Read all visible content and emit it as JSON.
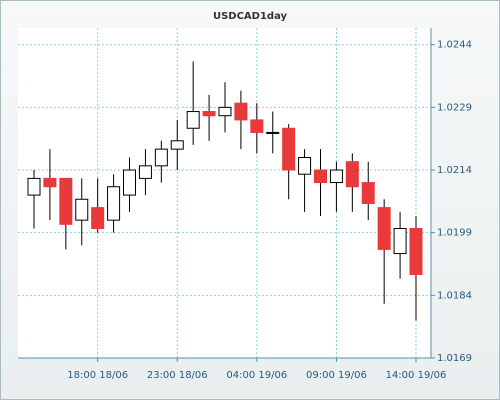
{
  "chart_data": {
    "type": "candlestick",
    "title": "USDCAD1day",
    "categories": [
      null,
      null,
      null,
      null,
      "18:00 18/06",
      null,
      null,
      null,
      null,
      "23:00 18/06",
      null,
      null,
      null,
      null,
      "04:00 19/06",
      null,
      null,
      null,
      null,
      "09:00 19/06",
      null,
      null,
      null,
      null,
      "14:00 19/06"
    ],
    "open": [
      1.0208,
      1.0212,
      1.0212,
      1.0202,
      1.0205,
      1.0202,
      1.0208,
      1.0212,
      1.0215,
      1.0219,
      1.0224,
      1.0228,
      1.0227,
      1.023,
      1.0226,
      1.0223,
      1.0224,
      1.0213,
      1.0214,
      1.0211,
      1.0216,
      1.0211,
      1.0205,
      1.0194,
      1.02
    ],
    "high": [
      1.0214,
      1.0219,
      1.0212,
      1.0212,
      1.0212,
      1.0213,
      1.0217,
      1.0219,
      1.0221,
      1.0226,
      1.024,
      1.0232,
      1.0235,
      1.0233,
      1.023,
      1.0228,
      1.0225,
      1.0219,
      1.0219,
      1.0216,
      1.0218,
      1.0216,
      1.0207,
      1.0204,
      1.0203
    ],
    "low": [
      1.02,
      1.0202,
      1.0195,
      1.0196,
      1.0199,
      1.0199,
      1.0204,
      1.0208,
      1.0211,
      1.0214,
      1.022,
      1.0221,
      1.0223,
      1.0219,
      1.0218,
      1.0218,
      1.0207,
      1.0204,
      1.0203,
      1.0204,
      1.0204,
      1.0202,
      1.0182,
      1.0188,
      1.0178
    ],
    "close": [
      1.0212,
      1.021,
      1.0201,
      1.0207,
      1.02,
      1.021,
      1.0214,
      1.0215,
      1.0219,
      1.0221,
      1.0228,
      1.0227,
      1.0229,
      1.0226,
      1.0223,
      1.0223,
      1.0214,
      1.0217,
      1.0211,
      1.0214,
      1.021,
      1.0206,
      1.0195,
      1.02,
      1.0189
    ],
    "up_color": "#ffffff",
    "down_color": "#e8393b",
    "ylim": [
      1.0169,
      1.0248
    ],
    "yticks": [
      1.0169,
      1.0184,
      1.0199,
      1.0214,
      1.0229,
      1.0244
    ],
    "grid": true
  }
}
